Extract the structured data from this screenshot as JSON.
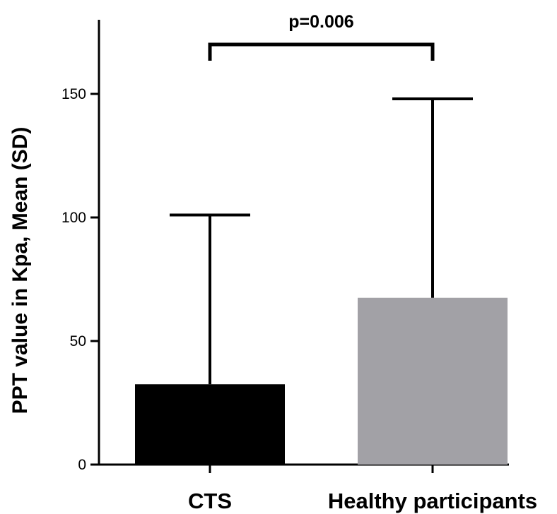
{
  "chart_data": {
    "type": "bar",
    "title": "",
    "xlabel": "",
    "ylabel": "PPT value in Kpa, Mean (SD)",
    "ylim": [
      0,
      180
    ],
    "yticks": [
      0,
      50,
      100,
      150
    ],
    "categories": [
      "CTS",
      "Healthy participants"
    ],
    "values": [
      32.5,
      67.5
    ],
    "error_upper": [
      101,
      148
    ],
    "colors": [
      "#000000",
      "#a2a1a6"
    ],
    "grid": false,
    "legend": "none",
    "annotation": {
      "text": "p=0.006",
      "from_category": 0,
      "to_category": 1,
      "y": 170
    }
  }
}
